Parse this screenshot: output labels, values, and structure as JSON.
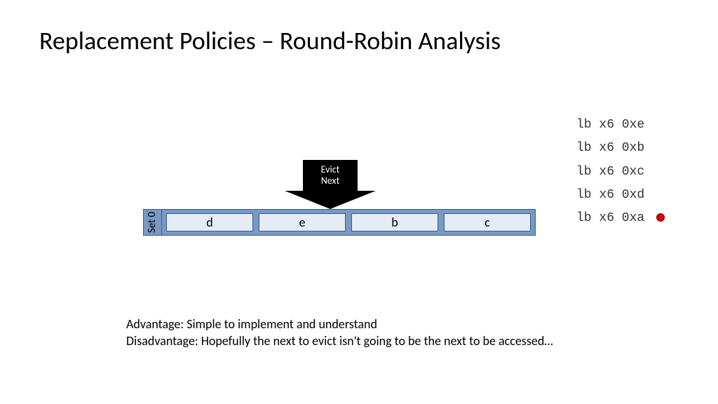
{
  "title": "Replacement Policies – Round-Robin Analysis",
  "colors": {
    "set_bg": "#7a98c4",
    "set_border": "#3a5b8b",
    "way_bg": "#e6ecf5",
    "way_border": "#3a5b8b",
    "arrow_bg": "#000000",
    "arrow_text": "#ffffff",
    "dot_fill": "#d40000",
    "dot_border": "#8b0000",
    "bg": "#ffffff"
  },
  "cache": {
    "set_label": "Set 0",
    "ways": [
      "d",
      "e",
      "b",
      "c"
    ],
    "evict_index": 1,
    "evict_label_line1": "Evict",
    "evict_label_line2": "Next"
  },
  "instructions": [
    "lb x6 0xe",
    "lb x6 0xb",
    "lb x6 0xc",
    "lb x6 0xd",
    "lb x6 0xa"
  ],
  "current_instruction_index": 4,
  "notes": {
    "line1": "Advantage: Simple to implement and understand",
    "line2": "Disadvantage: Hopefully the next to evict isn't going to be the next to be accessed…"
  },
  "typography": {
    "title_fontsize": 36,
    "way_fontsize": 18,
    "code_fontsize": 18,
    "notes_fontsize": 18,
    "evict_fontsize": 14
  }
}
